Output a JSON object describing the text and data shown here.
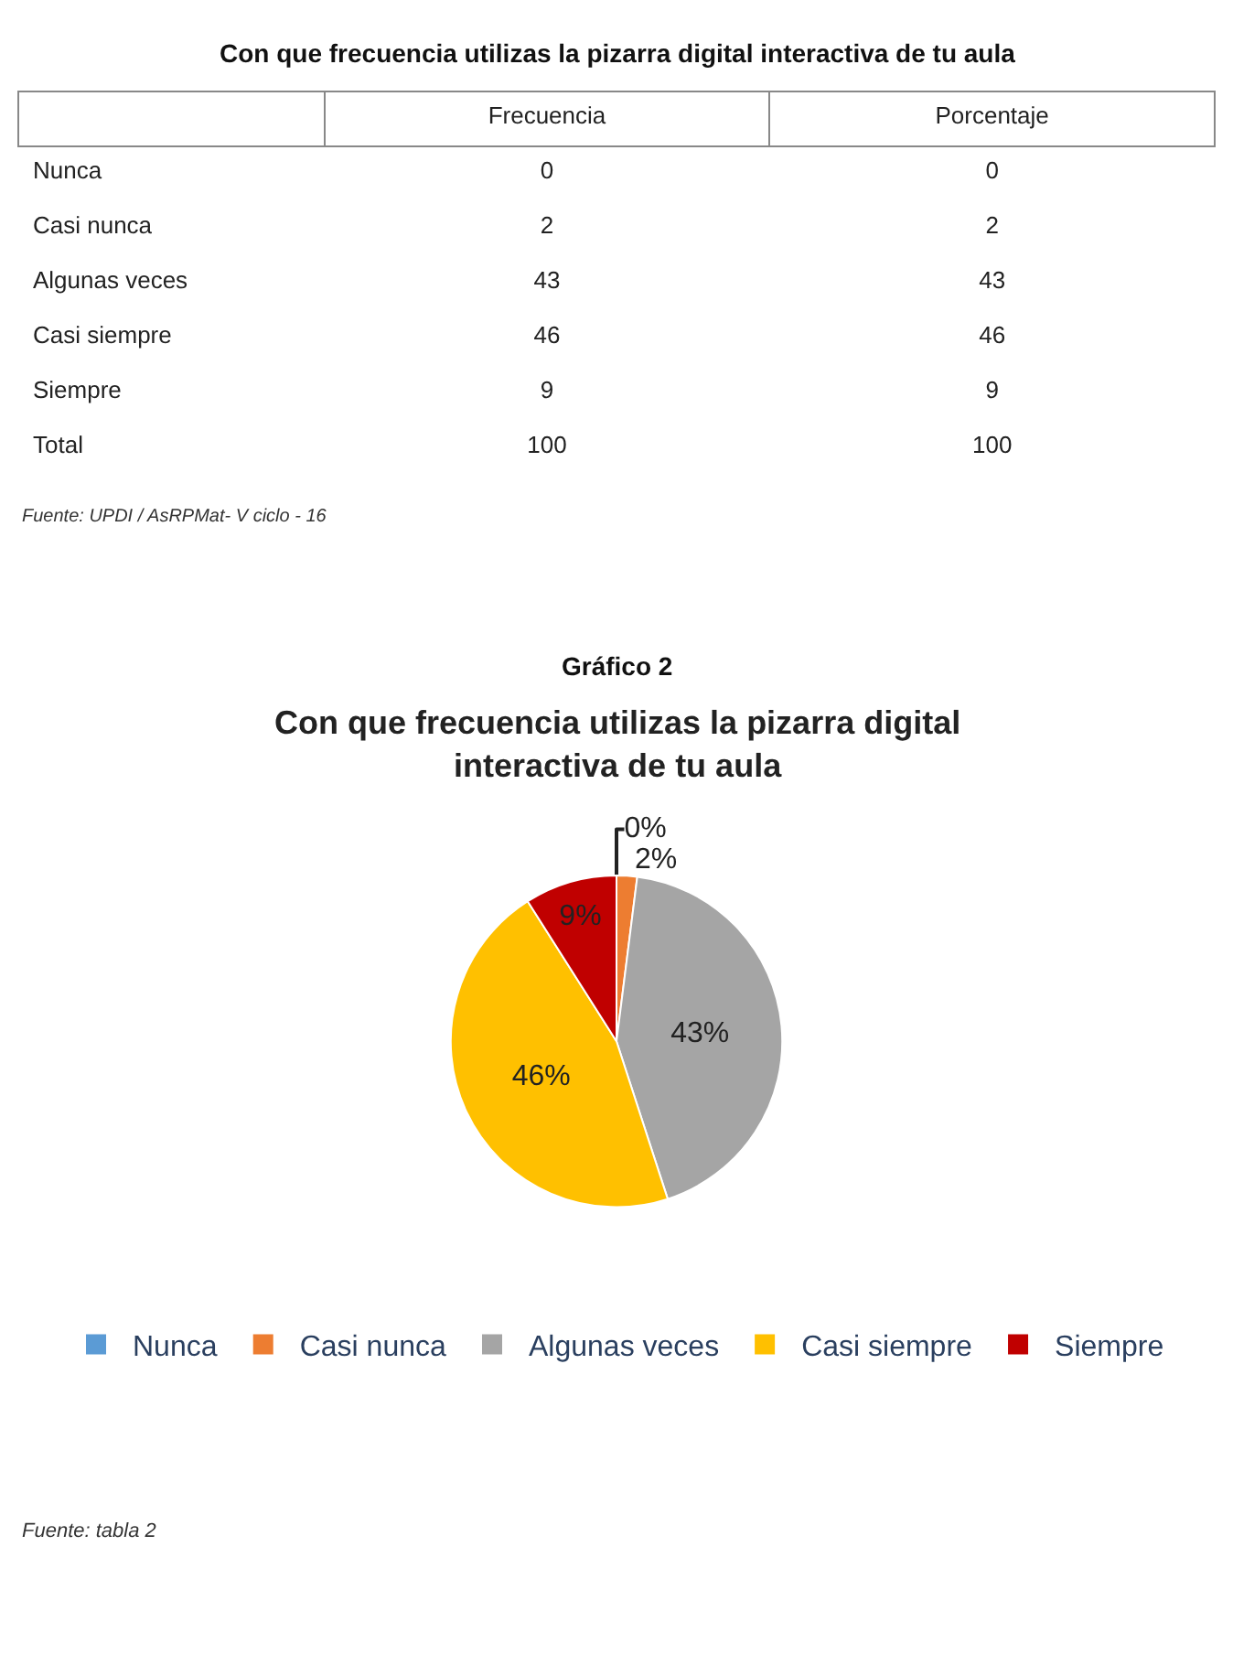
{
  "chart_data": [
    {
      "type": "other",
      "data_labels": true,
      "title": "Con que frecuencia utilizas la pizarra digital interactiva de tu aula",
      "categories": [
        "Nunca",
        "Casi nunca",
        "Algunas veces",
        "Casi siempre",
        "Siempre",
        "Total"
      ],
      "series": [
        {
          "name": "Frecuencia",
          "values": [
            0,
            2,
            43,
            46,
            9,
            100
          ]
        },
        {
          "name": "Porcentaje",
          "values": [
            0,
            2,
            43,
            46,
            9,
            100
          ]
        }
      ],
      "annotations": [
        "Fuente: UPDI / AsRPMat- V ciclo - 16"
      ]
    },
    {
      "type": "pie",
      "subtitle": "Gráfico 2",
      "title": "Con que frecuencia utilizas la pizarra digital interactiva de tu aula",
      "categories": [
        "Nunca",
        "Casi nunca",
        "Algunas veces",
        "Casi siempre",
        "Siempre"
      ],
      "values": [
        0,
        2,
        43,
        46,
        9
      ],
      "colors": [
        "#5b9bd5",
        "#ed7d31",
        "#a5a5a5",
        "#ffc000",
        "#c00000"
      ],
      "value_labels": [
        "0%",
        "2%",
        "43%",
        "46%",
        "9%"
      ],
      "legend": "bottom",
      "annotations": [
        "Fuente: tabla 2"
      ]
    }
  ]
}
